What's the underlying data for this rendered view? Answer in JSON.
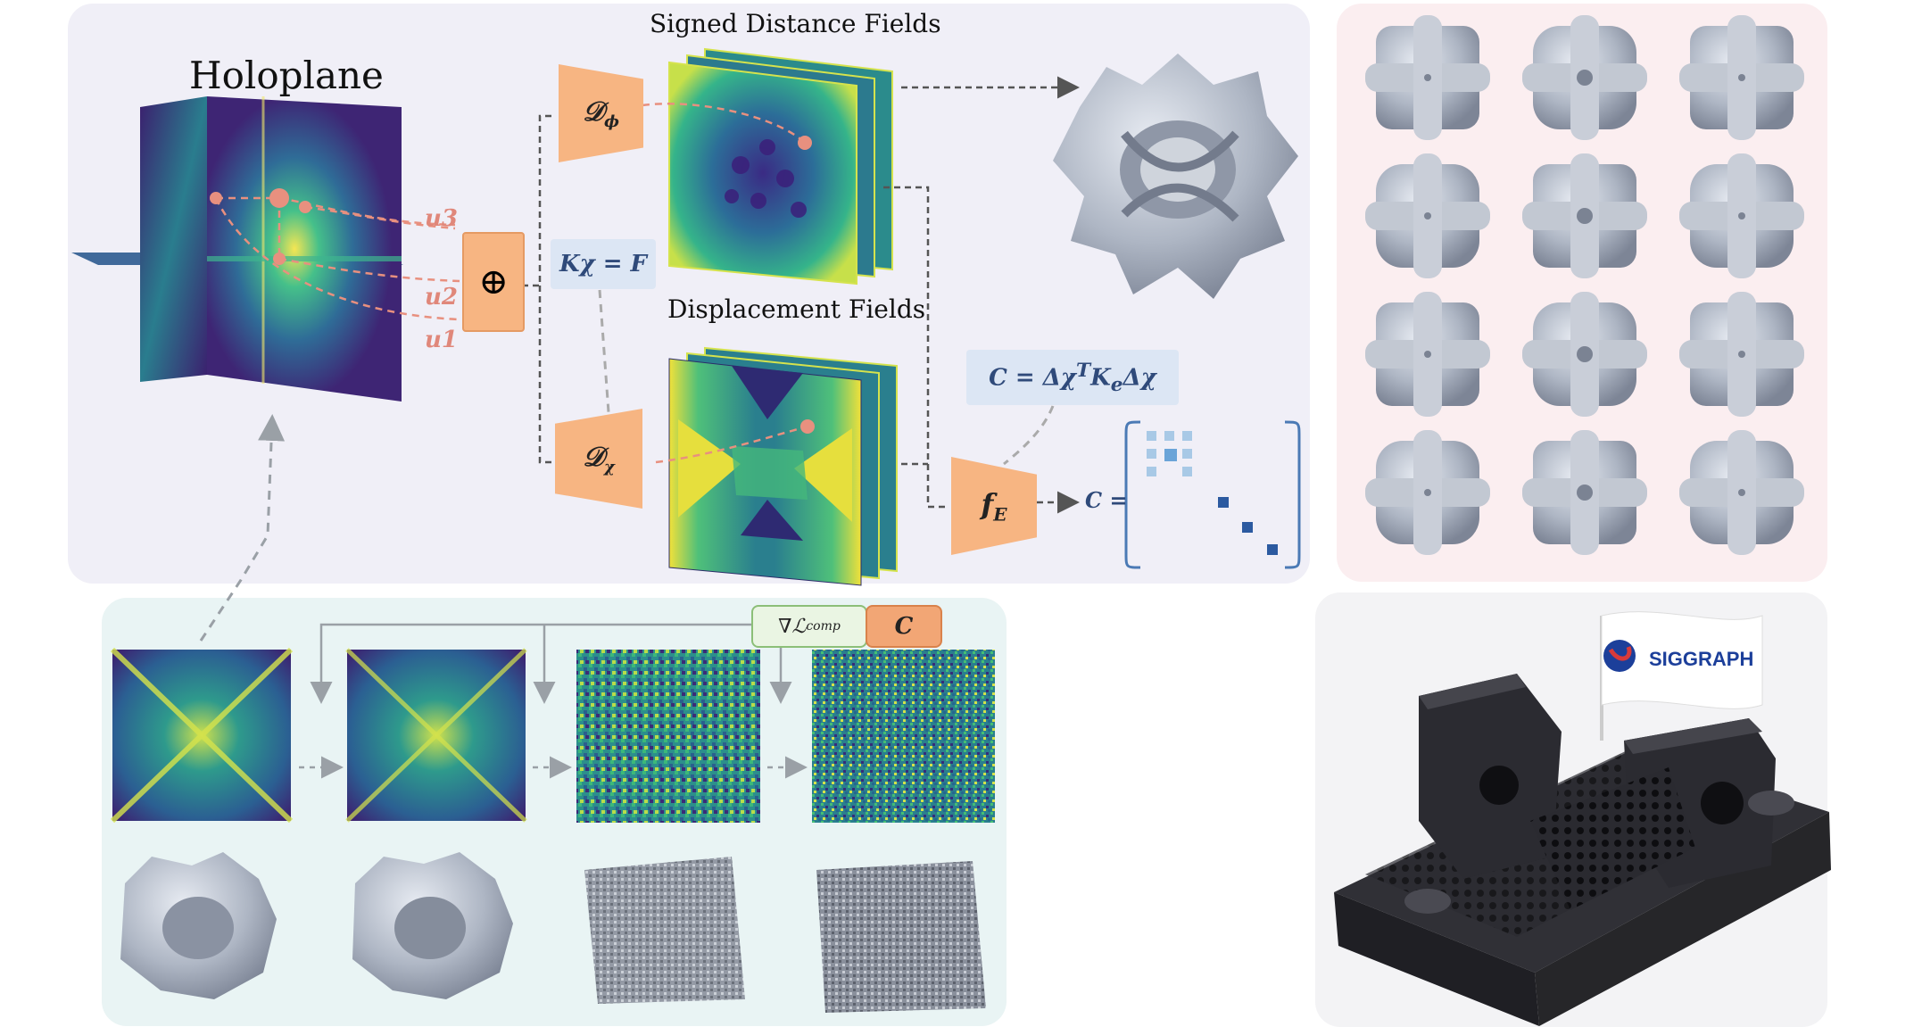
{
  "title": "Holoplane",
  "sdf_title": "Signed Distance Fields",
  "disp_title": "Displacement Fields",
  "u_labels": [
    "u3",
    "u2",
    "u1"
  ],
  "oplus": "⊕",
  "eq_kchi": "Kχ = F",
  "eq_compliance": "C = Δχ",
  "eq_compliance_sup": "T",
  "eq_compliance_tail": "K",
  "eq_compliance_sub": "e",
  "eq_compliance_end": "Δχ",
  "decoder_sdf": "𝒟",
  "decoder_sdf_sub": "ϕ",
  "decoder_disp": "𝒟",
  "decoder_disp_sub": "χ",
  "fe_label": "f",
  "fe_sub": "E",
  "c_equals": "C =",
  "loss_label": "∇ℒ",
  "loss_sub": "comp",
  "c_box": "C",
  "flag_text": "SIGGRAPH",
  "colors": {
    "panel_top": "#f0eff7",
    "panel_grid": "#fbeef0",
    "panel_bottom": "#e9f4f4",
    "orange": "#f7b582",
    "eq_box": "#dce6f4",
    "dashed_pink": "#e8907f",
    "arrow_gray": "#555555",
    "viridis_dark": "#44106b",
    "viridis_mid": "#21908d",
    "viridis_bright": "#fde725"
  }
}
